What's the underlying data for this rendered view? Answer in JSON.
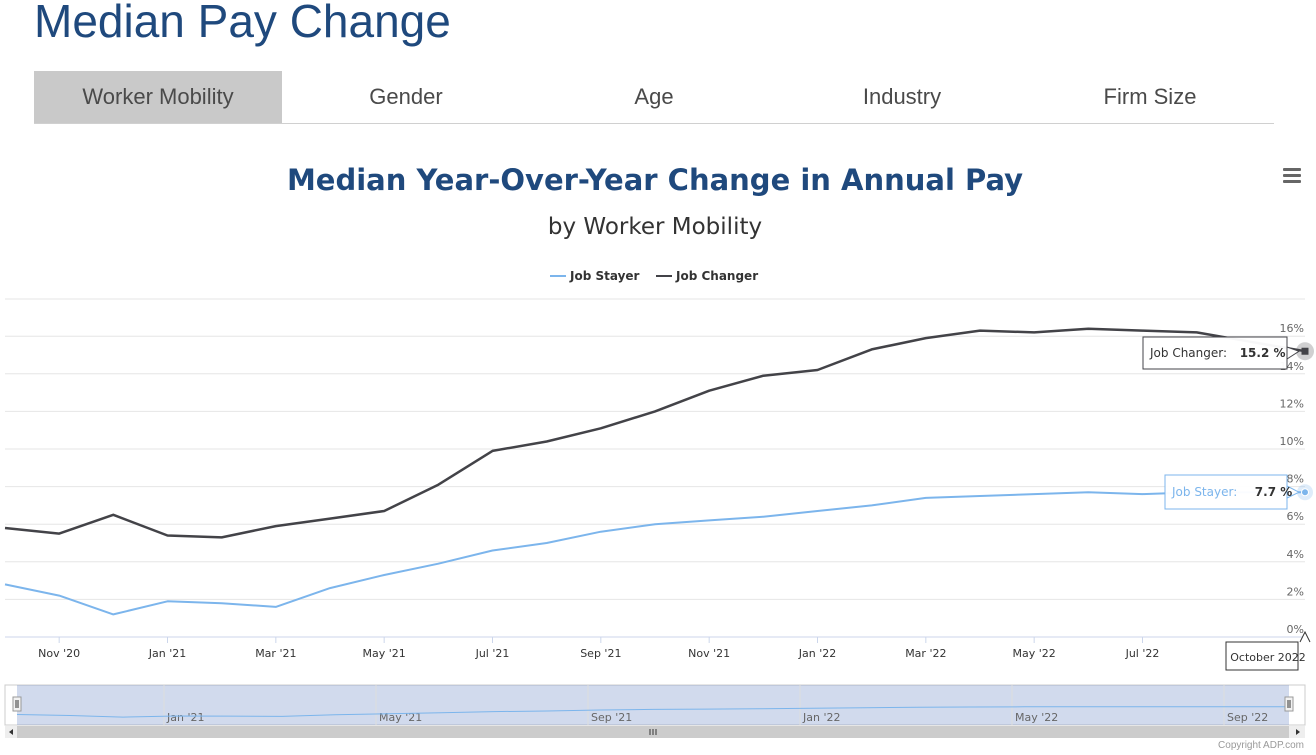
{
  "page": {
    "title": "Median Pay Change"
  },
  "tabs": [
    {
      "label": "Worker Mobility",
      "active": true
    },
    {
      "label": "Gender",
      "active": false
    },
    {
      "label": "Age",
      "active": false
    },
    {
      "label": "Industry",
      "active": false
    },
    {
      "label": "Firm Size",
      "active": false
    }
  ],
  "footer": {
    "copyright": "Copyright ADP.com"
  },
  "colors": {
    "job_stayer": "#7cb5ec",
    "job_changer": "#434348",
    "title": "#1f497d"
  },
  "icons": {
    "menu": "hamburger-menu-icon"
  },
  "chart_data": {
    "type": "line",
    "title": "Median Year-Over-Year Change in Annual Pay",
    "subtitle": "by Worker Mobility",
    "x": [
      "2020-10",
      "2020-11",
      "2020-12",
      "2021-01",
      "2021-02",
      "2021-03",
      "2021-04",
      "2021-05",
      "2021-06",
      "2021-07",
      "2021-08",
      "2021-09",
      "2021-10",
      "2021-11",
      "2021-12",
      "2022-01",
      "2022-02",
      "2022-03",
      "2022-04",
      "2022-05",
      "2022-06",
      "2022-07",
      "2022-08",
      "2022-09",
      "2022-10"
    ],
    "x_tick_labels": [
      "Nov '20",
      "Jan '21",
      "Mar '21",
      "May '21",
      "Jul '21",
      "Sep '21",
      "Nov '21",
      "Jan '22",
      "Mar '22",
      "May '22",
      "Jul '22"
    ],
    "y_tick_labels": [
      "0%",
      "2%",
      "4%",
      "6%",
      "8%",
      "10%",
      "12%",
      "14%",
      "16%"
    ],
    "ylim": [
      0,
      18
    ],
    "legend_position": "top-center",
    "series": [
      {
        "name": "Job Stayer",
        "values": [
          2.8,
          2.2,
          1.2,
          1.9,
          1.8,
          1.6,
          2.6,
          3.3,
          3.9,
          4.6,
          5.0,
          5.6,
          6.0,
          6.2,
          6.4,
          6.7,
          7.0,
          7.4,
          7.5,
          7.6,
          7.7,
          7.6,
          7.7,
          7.7,
          7.7
        ]
      },
      {
        "name": "Job Changer",
        "values": [
          5.8,
          5.5,
          6.5,
          5.4,
          5.3,
          5.9,
          6.3,
          6.7,
          8.1,
          9.9,
          10.4,
          11.1,
          12.0,
          13.1,
          13.9,
          14.2,
          15.3,
          15.9,
          16.3,
          16.2,
          16.4,
          16.3,
          16.2,
          15.7,
          15.2
        ]
      }
    ],
    "tooltip": {
      "x_label": "October 2022",
      "stayer_text": "Job Stayer: ",
      "stayer_value": "7.7 %",
      "changer_text": "Job Changer: ",
      "changer_value": "15.2 %"
    },
    "navigator": {
      "tick_labels": [
        "Jan '21",
        "May '21",
        "Sep '21",
        "Jan '22",
        "May '22",
        "Sep '22"
      ]
    }
  }
}
